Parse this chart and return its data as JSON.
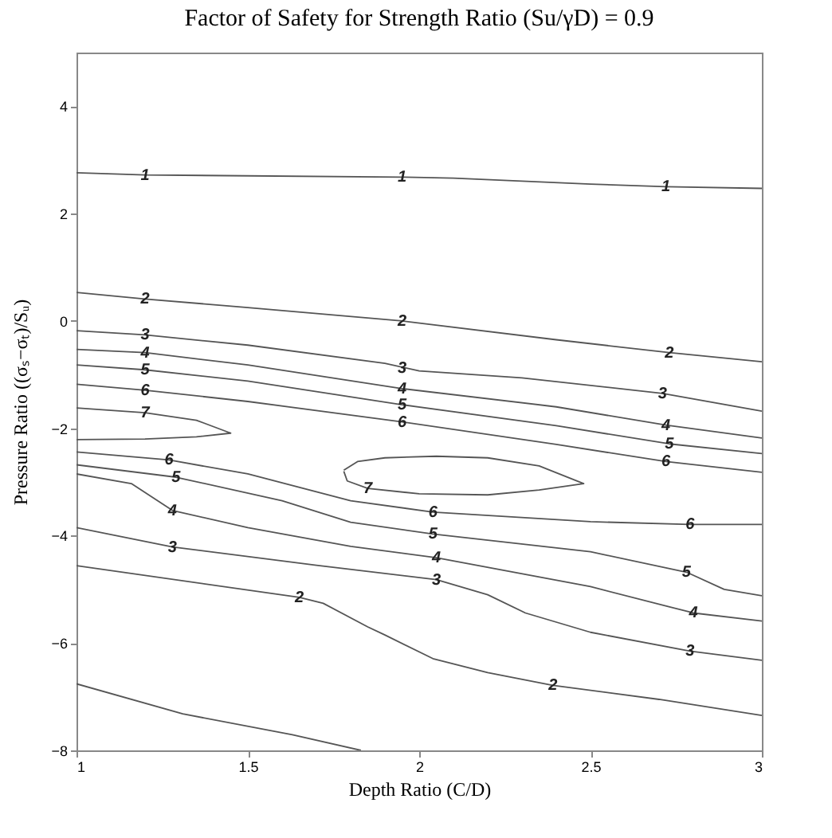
{
  "chart_data": {
    "type": "line",
    "title": "Factor of Safety for Strength Ratio (Su/γD) = 0.9",
    "xlabel": "Depth Ratio (C/D)",
    "ylabel": "Pressure Ratio ((σₛ−σₜ)/Sᵤ)",
    "xlim": [
      1,
      3
    ],
    "ylim": [
      -8,
      5
    ],
    "xticks": [
      1,
      1.5,
      2,
      2.5,
      3
    ],
    "yticks": [
      -8,
      -6,
      -4,
      -2,
      0,
      2,
      4
    ],
    "series": [
      {
        "color": "#555555",
        "x": [
          1,
          1.2,
          1.95,
          2.1,
          2.5,
          2.72,
          3
        ],
        "values": [
          2.76,
          2.72,
          2.68,
          2.66,
          2.55,
          2.5,
          2.47
        ]
      },
      {
        "color": "#555555",
        "x": [
          1,
          1.2,
          1.5,
          1.95,
          2.4,
          2.73,
          3
        ],
        "values": [
          0.53,
          0.41,
          0.25,
          0.0,
          -0.35,
          -0.59,
          -0.76
        ]
      },
      {
        "color": "#555555",
        "x": [
          1,
          1.2,
          1.5,
          1.9,
          2.0,
          2.3,
          2.71,
          3
        ],
        "values": [
          -0.18,
          -0.26,
          -0.45,
          -0.79,
          -0.93,
          -1.06,
          -1.35,
          -1.68
        ]
      },
      {
        "color": "#555555",
        "x": [
          1,
          1.2,
          1.5,
          1.95,
          2.4,
          2.72,
          3
        ],
        "values": [
          -0.53,
          -0.59,
          -0.82,
          -1.26,
          -1.6,
          -1.94,
          -2.18
        ]
      },
      {
        "color": "#555555",
        "x": [
          1,
          1.2,
          1.5,
          1.95,
          2.4,
          2.73,
          3
        ],
        "values": [
          -0.82,
          -0.91,
          -1.12,
          -1.56,
          -1.95,
          -2.29,
          -2.47
        ]
      },
      {
        "color": "#555555",
        "x": [
          1,
          1.2,
          1.5,
          1.95,
          2.4,
          2.72,
          3
        ],
        "values": [
          -1.18,
          -1.29,
          -1.5,
          -1.88,
          -2.3,
          -2.62,
          -2.82
        ]
      },
      {
        "color": "#555555",
        "x": [
          1,
          1.2,
          1.35,
          1.45,
          1.35,
          1.2,
          1
        ],
        "values": [
          -1.62,
          -1.71,
          -1.85,
          -2.09,
          -2.16,
          -2.2,
          -2.21
        ]
      },
      {
        "color": "#555555",
        "x": [
          1.78,
          1.82,
          1.9,
          2.05,
          2.2,
          2.35,
          2.48,
          2.35,
          2.2,
          2.0,
          1.85,
          1.79,
          1.78
        ],
        "values": [
          -2.78,
          -2.62,
          -2.55,
          -2.52,
          -2.55,
          -2.7,
          -3.03,
          -3.15,
          -3.24,
          -3.22,
          -3.12,
          -2.98,
          -2.8
        ]
      },
      {
        "color": "#555555",
        "x": [
          1,
          1.27,
          1.5,
          1.8,
          2.04,
          2.5,
          2.79,
          3
        ],
        "values": [
          -2.44,
          -2.59,
          -2.85,
          -3.35,
          -3.56,
          -3.74,
          -3.79,
          -3.79
        ]
      },
      {
        "color": "#555555",
        "x": [
          1,
          1.29,
          1.6,
          1.8,
          2.04,
          2.5,
          2.78,
          2.89,
          3
        ],
        "values": [
          -2.68,
          -2.91,
          -3.35,
          -3.75,
          -3.97,
          -4.3,
          -4.68,
          -5.0,
          -5.12
        ]
      },
      {
        "color": "#555555",
        "x": [
          1,
          1.16,
          1.28,
          1.5,
          1.8,
          2.05,
          2.5,
          2.8,
          3
        ],
        "values": [
          -2.85,
          -3.03,
          -3.53,
          -3.85,
          -4.2,
          -4.41,
          -4.95,
          -5.44,
          -5.59
        ]
      },
      {
        "color": "#555555",
        "x": [
          1,
          1.28,
          1.7,
          2.05,
          2.2,
          2.31,
          2.5,
          2.79,
          3
        ],
        "values": [
          -3.85,
          -4.21,
          -4.55,
          -4.82,
          -5.1,
          -5.44,
          -5.8,
          -6.15,
          -6.32
        ]
      },
      {
        "color": "#555555",
        "x": [
          1,
          1.65,
          1.72,
          1.85,
          1.9,
          2.04,
          2.2,
          2.39,
          2.7,
          3
        ],
        "values": [
          -4.56,
          -5.15,
          -5.26,
          -5.7,
          -5.85,
          -6.29,
          -6.55,
          -6.79,
          -7.05,
          -7.35
        ]
      },
      {
        "color": "#555555",
        "x": [
          1,
          1.31,
          1.63,
          1.83
        ],
        "values": [
          -6.76,
          -7.32,
          -7.71,
          -8.0
        ]
      }
    ],
    "annotations": [
      {
        "text": "1",
        "x": 1.2,
        "y": 2.72
      },
      {
        "text": "1",
        "x": 1.95,
        "y": 2.68
      },
      {
        "text": "1",
        "x": 2.72,
        "y": 2.5
      },
      {
        "text": "2",
        "x": 1.2,
        "y": 0.41
      },
      {
        "text": "2",
        "x": 1.95,
        "y": 0.0
      },
      {
        "text": "2",
        "x": 2.73,
        "y": -0.59
      },
      {
        "text": "3",
        "x": 1.2,
        "y": -0.26
      },
      {
        "text": "3",
        "x": 1.95,
        "y": -0.88
      },
      {
        "text": "3",
        "x": 2.71,
        "y": -1.35
      },
      {
        "text": "4",
        "x": 1.2,
        "y": -0.59
      },
      {
        "text": "4",
        "x": 1.95,
        "y": -1.26
      },
      {
        "text": "4",
        "x": 2.72,
        "y": -1.94
      },
      {
        "text": "5",
        "x": 1.2,
        "y": -0.91
      },
      {
        "text": "5",
        "x": 1.95,
        "y": -1.56
      },
      {
        "text": "5",
        "x": 2.73,
        "y": -2.29
      },
      {
        "text": "6",
        "x": 1.2,
        "y": -1.29
      },
      {
        "text": "6",
        "x": 1.95,
        "y": -1.88
      },
      {
        "text": "6",
        "x": 2.72,
        "y": -2.62
      },
      {
        "text": "7",
        "x": 1.2,
        "y": -1.71
      },
      {
        "text": "7",
        "x": 1.85,
        "y": -3.12
      },
      {
        "text": "6",
        "x": 1.27,
        "y": -2.59
      },
      {
        "text": "6",
        "x": 2.04,
        "y": -3.56
      },
      {
        "text": "6",
        "x": 2.79,
        "y": -3.79
      },
      {
        "text": "5",
        "x": 1.29,
        "y": -2.91
      },
      {
        "text": "5",
        "x": 2.04,
        "y": -3.97
      },
      {
        "text": "5",
        "x": 2.78,
        "y": -4.68
      },
      {
        "text": "4",
        "x": 1.28,
        "y": -3.53
      },
      {
        "text": "4",
        "x": 2.05,
        "y": -4.41
      },
      {
        "text": "4",
        "x": 2.8,
        "y": -5.44
      },
      {
        "text": "3",
        "x": 1.28,
        "y": -4.21
      },
      {
        "text": "3",
        "x": 2.05,
        "y": -4.82
      },
      {
        "text": "3",
        "x": 2.79,
        "y": -6.15
      },
      {
        "text": "2",
        "x": 1.65,
        "y": -5.15
      },
      {
        "text": "2",
        "x": 2.39,
        "y": -6.79
      }
    ]
  }
}
